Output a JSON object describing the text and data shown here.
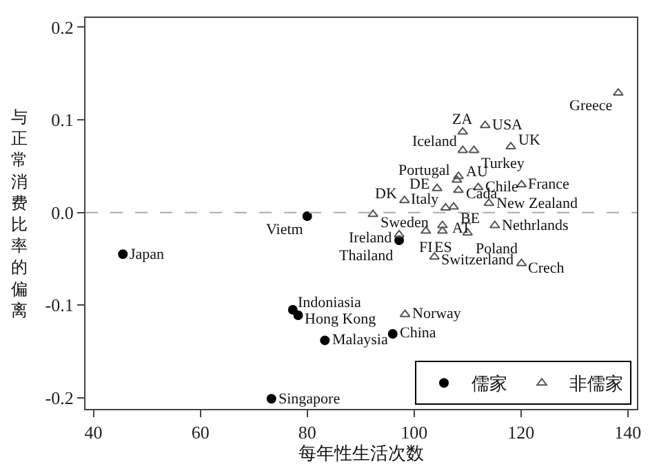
{
  "chart_data": {
    "type": "scatter",
    "xlabel": "每年性生活次数",
    "ylabel": "与正常消费比率的偏离",
    "xlim": [
      38.5,
      141.7
    ],
    "ylim": [
      -0.212,
      0.21
    ],
    "xticks": [
      40,
      60,
      80,
      100,
      120,
      140
    ],
    "yticks": [
      {
        "value": -0.2,
        "label": "-0.2"
      },
      {
        "value": -0.1,
        "label": "-0.1"
      },
      {
        "value": 0,
        "label": "0.0"
      },
      {
        "value": 0.1,
        "label": "0.1"
      },
      {
        "value": 0.2,
        "label": "0.2"
      }
    ],
    "legend": "bottom right",
    "ref_lines": [
      {
        "axis": "y",
        "value": 0,
        "color": "#aaaaaa",
        "line_style": "dashed"
      }
    ],
    "series": [
      {
        "name": "儒家",
        "color": "#000000",
        "marker": "circle",
        "x": [
          45.5,
          80,
          77.3,
          78.3,
          83.3,
          96,
          73.3,
          97.2
        ],
        "values": [
          -0.045,
          -0.004,
          -0.105,
          -0.111,
          -0.138,
          -0.131,
          -0.201,
          -0.03
        ]
      },
      {
        "name": "非儒家",
        "color": "#555555",
        "marker": "triangle",
        "x": [
          138.2,
          109.1,
          113.3,
          118.1,
          109.1,
          111.2,
          108.3,
          108,
          108.3,
          112,
          120.1,
          104.3,
          98.2,
          105.9,
          107.4,
          114,
          92.3,
          105.3,
          102.2,
          105.3,
          115.1,
          110,
          103.8,
          120.1,
          98.3,
          97.2
        ],
        "values": [
          0.129,
          0.087,
          0.094,
          0.071,
          0.067,
          0.067,
          0.039,
          0.035,
          0.024,
          0.027,
          0.03,
          0.026,
          0.013,
          0.005,
          0.006,
          0.01,
          -0.002,
          -0.014,
          -0.02,
          -0.02,
          -0.014,
          -0.022,
          -0.048,
          -0.055,
          -0.11,
          -0.024
        ]
      }
    ],
    "annotations": [
      {
        "text": "Japan",
        "x": 45.5,
        "y": -0.045
      },
      {
        "text": "Vietm",
        "x": 80,
        "y": -0.004
      },
      {
        "text": "Indoniasia",
        "x": 77.3,
        "y": -0.105
      },
      {
        "text": "Hong Kong",
        "x": 78.3,
        "y": -0.111
      },
      {
        "text": "Malaysia",
        "x": 83.3,
        "y": -0.138
      },
      {
        "text": "China",
        "x": 96,
        "y": -0.131
      },
      {
        "text": "Singapore",
        "x": 73.3,
        "y": -0.201
      },
      {
        "text": "Thailand",
        "x": 97.2,
        "y": -0.03
      },
      {
        "text": "Greece",
        "x": 138.2,
        "y": 0.129
      },
      {
        "text": "ZA",
        "x": 109.1,
        "y": 0.087
      },
      {
        "text": "USA",
        "x": 113.3,
        "y": 0.094
      },
      {
        "text": "UK",
        "x": 118.1,
        "y": 0.071
      },
      {
        "text": "Iceland",
        "x": 109.1,
        "y": 0.067
      },
      {
        "text": "Turkey",
        "x": 111.2,
        "y": 0.067
      },
      {
        "text": "AU",
        "x": 108.3,
        "y": 0.039
      },
      {
        "text": "Portugal",
        "x": 108,
        "y": 0.035
      },
      {
        "text": "Cada",
        "x": 108.3,
        "y": 0.024
      },
      {
        "text": "Chile",
        "x": 112,
        "y": 0.027
      },
      {
        "text": "France",
        "x": 120.1,
        "y": 0.03
      },
      {
        "text": "DE",
        "x": 104.3,
        "y": 0.026
      },
      {
        "text": "DK",
        "x": 98.2,
        "y": 0.013
      },
      {
        "text": "Italy",
        "x": 105.9,
        "y": 0.005
      },
      {
        "text": "BE",
        "x": 107.4,
        "y": 0.006
      },
      {
        "text": "New Zealand",
        "x": 114,
        "y": 0.01
      },
      {
        "text": "Sweden",
        "x": 92.3,
        "y": -0.002
      },
      {
        "text": "AT",
        "x": 105.3,
        "y": -0.014
      },
      {
        "text": "FI",
        "x": 102.2,
        "y": -0.02
      },
      {
        "text": "ES",
        "x": 105.3,
        "y": -0.02
      },
      {
        "text": "Nethrlands",
        "x": 115.1,
        "y": -0.014
      },
      {
        "text": "Poland",
        "x": 110,
        "y": -0.022
      },
      {
        "text": "Switzerland",
        "x": 103.8,
        "y": -0.048
      },
      {
        "text": "Crech",
        "x": 120.1,
        "y": -0.055
      },
      {
        "text": "Norway",
        "x": 98.3,
        "y": -0.11
      },
      {
        "text": "Ireland",
        "x": 97.2,
        "y": -0.024
      }
    ]
  }
}
